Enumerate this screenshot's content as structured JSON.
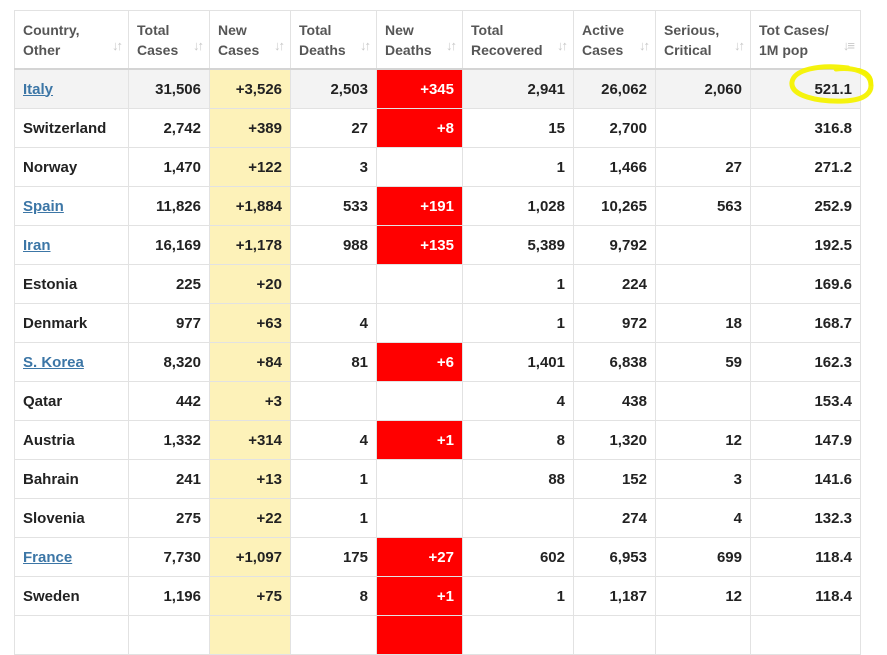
{
  "colors": {
    "new_cases_bg": "#fdf2b9",
    "new_deaths_bg": "#ff0000",
    "link": "#3c76a6",
    "highlighter": "#f4f200"
  },
  "headers": [
    {
      "label": "Country,\nOther",
      "sort_icon": "sort-icon"
    },
    {
      "label": "Total\nCases",
      "sort_icon": "sort-icon"
    },
    {
      "label": "New\nCases",
      "sort_icon": "sort-icon"
    },
    {
      "label": "Total\nDeaths",
      "sort_icon": "sort-icon"
    },
    {
      "label": "New\nDeaths",
      "sort_icon": "sort-icon"
    },
    {
      "label": "Total\nRecovered",
      "sort_icon": "sort-icon"
    },
    {
      "label": "Active\nCases",
      "sort_icon": "sort-icon"
    },
    {
      "label": "Serious,\nCritical",
      "sort_icon": "sort-icon"
    },
    {
      "label": "Tot Cases/\n1M pop",
      "sort_icon": "sort-desc-icon"
    }
  ],
  "rows": [
    {
      "country": "Italy",
      "link": true,
      "total_cases": "31,506",
      "new_cases": "+3,526",
      "total_deaths": "2,503",
      "new_deaths": "+345",
      "total_recovered": "2,941",
      "active_cases": "26,062",
      "serious": "2,060",
      "per_million": "521.1"
    },
    {
      "country": "Switzerland",
      "link": false,
      "total_cases": "2,742",
      "new_cases": "+389",
      "total_deaths": "27",
      "new_deaths": "+8",
      "total_recovered": "15",
      "active_cases": "2,700",
      "serious": "",
      "per_million": "316.8"
    },
    {
      "country": "Norway",
      "link": false,
      "total_cases": "1,470",
      "new_cases": "+122",
      "total_deaths": "3",
      "new_deaths": "",
      "total_recovered": "1",
      "active_cases": "1,466",
      "serious": "27",
      "per_million": "271.2"
    },
    {
      "country": "Spain",
      "link": true,
      "total_cases": "11,826",
      "new_cases": "+1,884",
      "total_deaths": "533",
      "new_deaths": "+191",
      "total_recovered": "1,028",
      "active_cases": "10,265",
      "serious": "563",
      "per_million": "252.9"
    },
    {
      "country": "Iran",
      "link": true,
      "total_cases": "16,169",
      "new_cases": "+1,178",
      "total_deaths": "988",
      "new_deaths": "+135",
      "total_recovered": "5,389",
      "active_cases": "9,792",
      "serious": "",
      "per_million": "192.5"
    },
    {
      "country": "Estonia",
      "link": false,
      "total_cases": "225",
      "new_cases": "+20",
      "total_deaths": "",
      "new_deaths": "",
      "total_recovered": "1",
      "active_cases": "224",
      "serious": "",
      "per_million": "169.6"
    },
    {
      "country": "Denmark",
      "link": false,
      "total_cases": "977",
      "new_cases": "+63",
      "total_deaths": "4",
      "new_deaths": "",
      "total_recovered": "1",
      "active_cases": "972",
      "serious": "18",
      "per_million": "168.7"
    },
    {
      "country": "S. Korea",
      "link": true,
      "total_cases": "8,320",
      "new_cases": "+84",
      "total_deaths": "81",
      "new_deaths": "+6",
      "total_recovered": "1,401",
      "active_cases": "6,838",
      "serious": "59",
      "per_million": "162.3"
    },
    {
      "country": "Qatar",
      "link": false,
      "total_cases": "442",
      "new_cases": "+3",
      "total_deaths": "",
      "new_deaths": "",
      "total_recovered": "4",
      "active_cases": "438",
      "serious": "",
      "per_million": "153.4"
    },
    {
      "country": "Austria",
      "link": false,
      "total_cases": "1,332",
      "new_cases": "+314",
      "total_deaths": "4",
      "new_deaths": "+1",
      "total_recovered": "8",
      "active_cases": "1,320",
      "serious": "12",
      "per_million": "147.9"
    },
    {
      "country": "Bahrain",
      "link": false,
      "total_cases": "241",
      "new_cases": "+13",
      "total_deaths": "1",
      "new_deaths": "",
      "total_recovered": "88",
      "active_cases": "152",
      "serious": "3",
      "per_million": "141.6"
    },
    {
      "country": "Slovenia",
      "link": false,
      "total_cases": "275",
      "new_cases": "+22",
      "total_deaths": "1",
      "new_deaths": "",
      "total_recovered": "",
      "active_cases": "274",
      "serious": "4",
      "per_million": "132.3"
    },
    {
      "country": "France",
      "link": true,
      "total_cases": "7,730",
      "new_cases": "+1,097",
      "total_deaths": "175",
      "new_deaths": "+27",
      "total_recovered": "602",
      "active_cases": "6,953",
      "serious": "699",
      "per_million": "118.4"
    },
    {
      "country": "Sweden",
      "link": false,
      "total_cases": "1,196",
      "new_cases": "+75",
      "total_deaths": "8",
      "new_deaths": "+1",
      "total_recovered": "1",
      "active_cases": "1,187",
      "serious": "12",
      "per_million": "118.4"
    }
  ],
  "partial_row": {
    "new_deaths_colored": true
  }
}
